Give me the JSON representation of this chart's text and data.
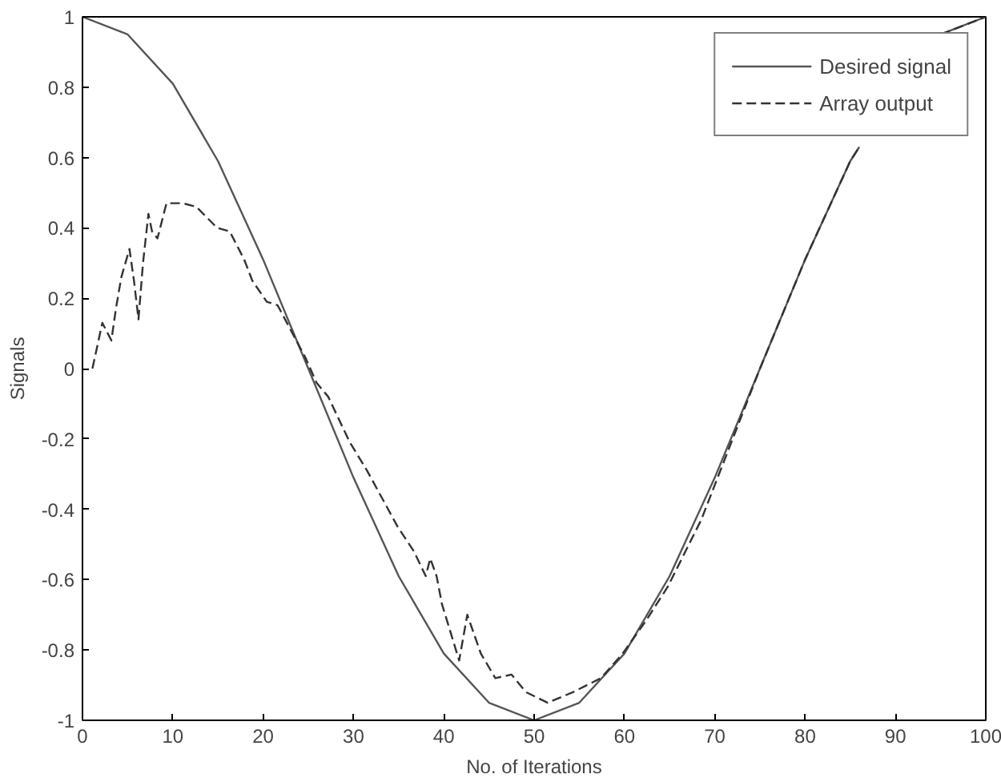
{
  "chart_data": {
    "type": "line",
    "xlabel": "No. of Iterations",
    "ylabel": "Signals",
    "xlim": [
      0,
      100
    ],
    "ylim": [
      -1,
      1
    ],
    "xticks": [
      0,
      10,
      20,
      30,
      40,
      50,
      60,
      70,
      80,
      90,
      100
    ],
    "yticks": [
      {
        "value": -1,
        "label": "-1"
      },
      {
        "value": -0.8,
        "label": "-0.8"
      },
      {
        "value": -0.6,
        "label": "-0.6"
      },
      {
        "value": -0.4,
        "label": "-0.4"
      },
      {
        "value": -0.2,
        "label": "-0.2"
      },
      0,
      0.2,
      0.4,
      0.6,
      0.8,
      1
    ],
    "grid": false,
    "legend": "top right",
    "marker": "none",
    "series": [
      {
        "name": "Desired signal",
        "color": "#555555",
        "line_style": "solid",
        "x": [
          0,
          5,
          10,
          15,
          20,
          25,
          30,
          35,
          40,
          45,
          50,
          55,
          60,
          65,
          70,
          75,
          80,
          85,
          86,
          90,
          95,
          100
        ],
        "values": [
          1,
          0.95,
          0.81,
          0.59,
          0.31,
          0,
          -0.31,
          -0.59,
          -0.81,
          -0.95,
          -1,
          -0.95,
          -0.81,
          -0.59,
          -0.31,
          0,
          0.31,
          0.59,
          0.63,
          null,
          0.95,
          1
        ]
      },
      {
        "name": "Array output",
        "color": "#333333",
        "line_style": "dashed",
        "x": [
          1.1,
          2.2,
          3.2,
          3.7,
          4.3,
          5.2,
          5.7,
          6.2,
          6.7,
          7.3,
          7.7,
          8.3,
          9.3,
          11.1,
          12.6,
          14.9,
          16.3,
          17.9,
          18.8,
          20.4,
          21.6,
          24.7,
          25.9,
          27.2,
          29.6,
          31.5,
          34.9,
          36.7,
          38,
          38.5,
          39.2,
          39.8,
          41.7,
          42.6,
          44.1,
          45.7,
          47.5,
          49.1,
          51.5,
          54.3,
          57.4,
          59.8,
          62.3,
          64.8,
          68.5,
          75,
          80,
          85,
          86,
          90,
          95,
          100
        ],
        "values": [
          0,
          0.13,
          0.08,
          0.17,
          0.26,
          0.34,
          0.25,
          0.14,
          0.3,
          0.44,
          0.39,
          0.37,
          0.47,
          0.47,
          0.46,
          0.4,
          0.39,
          0.31,
          0.25,
          0.19,
          0.18,
          0.03,
          -0.04,
          -0.08,
          -0.21,
          -0.29,
          -0.45,
          -0.52,
          -0.59,
          -0.54,
          -0.59,
          -0.67,
          -0.83,
          -0.7,
          -0.81,
          -0.88,
          -0.87,
          -0.92,
          -0.95,
          -0.92,
          -0.88,
          -0.81,
          -0.72,
          -0.62,
          -0.43,
          0,
          0.31,
          0.59,
          0.63,
          null,
          0.95,
          1
        ]
      }
    ]
  }
}
